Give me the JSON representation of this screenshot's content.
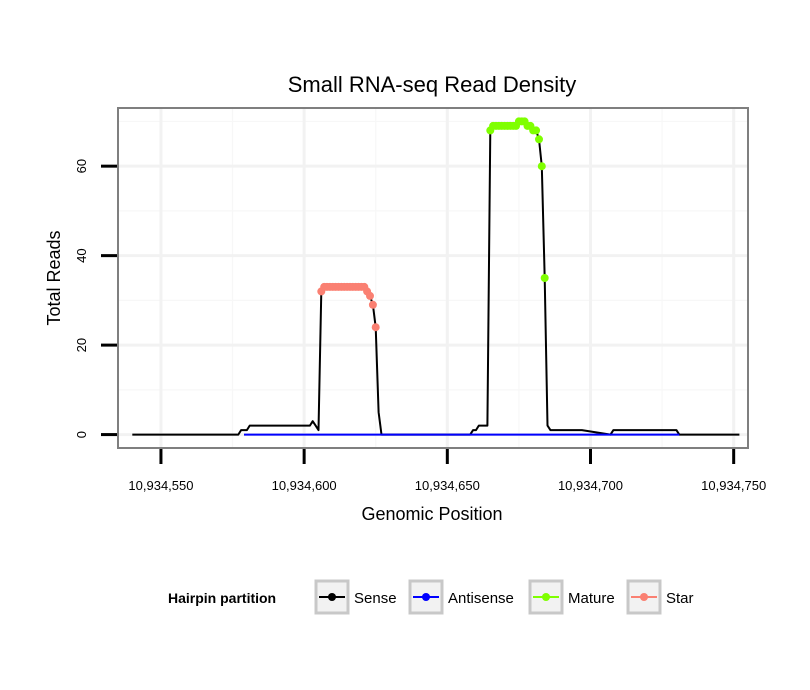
{
  "chart_data": {
    "type": "line",
    "title": "Small RNA-seq Read Density",
    "xlabel": "Genomic Position",
    "ylabel": "Total Reads",
    "xlim": [
      10934535,
      10934755
    ],
    "ylim": [
      -3,
      73
    ],
    "x_ticks": [
      10934550,
      10934600,
      10934650,
      10934700,
      10934750
    ],
    "x_tick_labels": [
      "10,934,550",
      "10,934,600",
      "10,934,650",
      "10,934,700",
      "10,934,750"
    ],
    "y_ticks": [
      0,
      20,
      40,
      60
    ],
    "y_tick_labels": [
      "0",
      "20",
      "40",
      "60"
    ],
    "grid": true,
    "legend": {
      "title": "Hairpin partition",
      "position": "bottom",
      "entries": [
        {
          "label": "Sense",
          "color": "#000000"
        },
        {
          "label": "Antisense",
          "color": "#0000ff"
        },
        {
          "label": "Mature",
          "color": "#7fff00"
        },
        {
          "label": "Star",
          "color": "#fa8072"
        }
      ]
    },
    "series": [
      {
        "name": "Sense",
        "color": "#000000",
        "line": true,
        "points": false,
        "x": [
          10934540,
          10934577,
          10934578,
          10934579,
          10934580,
          10934581,
          10934582,
          10934583,
          10934584,
          10934585,
          10934590,
          10934595,
          10934600,
          10934602,
          10934603,
          10934604,
          10934605,
          10934606,
          10934607,
          10934608,
          10934609,
          10934610,
          10934611,
          10934612,
          10934613,
          10934614,
          10934615,
          10934616,
          10934617,
          10934618,
          10934619,
          10934620,
          10934621,
          10934622,
          10934623,
          10934624,
          10934625,
          10934626,
          10934627,
          10934650,
          10934658,
          10934659,
          10934660,
          10934661,
          10934662,
          10934663,
          10934664,
          10934665,
          10934666,
          10934667,
          10934668,
          10934669,
          10934670,
          10934671,
          10934672,
          10934673,
          10934674,
          10934675,
          10934676,
          10934677,
          10934678,
          10934679,
          10934680,
          10934681,
          10934682,
          10934683,
          10934684,
          10934685,
          10934686,
          10934687,
          10934688,
          10934689,
          10934695,
          10934697,
          10934707,
          10934708,
          10934720,
          10934730,
          10934731,
          10934752
        ],
        "y": [
          0,
          0,
          1,
          1,
          1,
          2,
          2,
          2,
          2,
          2,
          2,
          2,
          2,
          2,
          3,
          2,
          1,
          32,
          33,
          33,
          33,
          33,
          33,
          33,
          33,
          33,
          33,
          33,
          33,
          33,
          33,
          33,
          33,
          32,
          31,
          29,
          24,
          5,
          0,
          0,
          0,
          1,
          1,
          2,
          2,
          2,
          2,
          68,
          69,
          69,
          69,
          69,
          69,
          69,
          69,
          69,
          69,
          70,
          70,
          70,
          69,
          69,
          68,
          68,
          66,
          60,
          35,
          2,
          1,
          1,
          1,
          1,
          1,
          1,
          0,
          1,
          1,
          1,
          0,
          0
        ]
      },
      {
        "name": "Antisense",
        "color": "#0000ff",
        "line": true,
        "points": false,
        "x": [
          10934579,
          10934731
        ],
        "y": [
          0,
          0
        ]
      },
      {
        "name": "Mature",
        "color": "#7fff00",
        "line": false,
        "points": true,
        "x": [
          10934665,
          10934666,
          10934667,
          10934668,
          10934669,
          10934670,
          10934671,
          10934672,
          10934673,
          10934674,
          10934675,
          10934676,
          10934677,
          10934678,
          10934679,
          10934680,
          10934681,
          10934682,
          10934683,
          10934684
        ],
        "y": [
          68,
          69,
          69,
          69,
          69,
          69,
          69,
          69,
          69,
          69,
          70,
          70,
          70,
          69,
          69,
          68,
          68,
          66,
          60,
          35
        ]
      },
      {
        "name": "Star",
        "color": "#fa8072",
        "line": false,
        "points": true,
        "x": [
          10934606,
          10934607,
          10934608,
          10934609,
          10934610,
          10934611,
          10934612,
          10934613,
          10934614,
          10934615,
          10934616,
          10934617,
          10934618,
          10934619,
          10934620,
          10934621,
          10934622,
          10934623,
          10934624,
          10934625
        ],
        "y": [
          32,
          33,
          33,
          33,
          33,
          33,
          33,
          33,
          33,
          33,
          33,
          33,
          33,
          33,
          33,
          33,
          32,
          31,
          29,
          24
        ]
      }
    ]
  }
}
